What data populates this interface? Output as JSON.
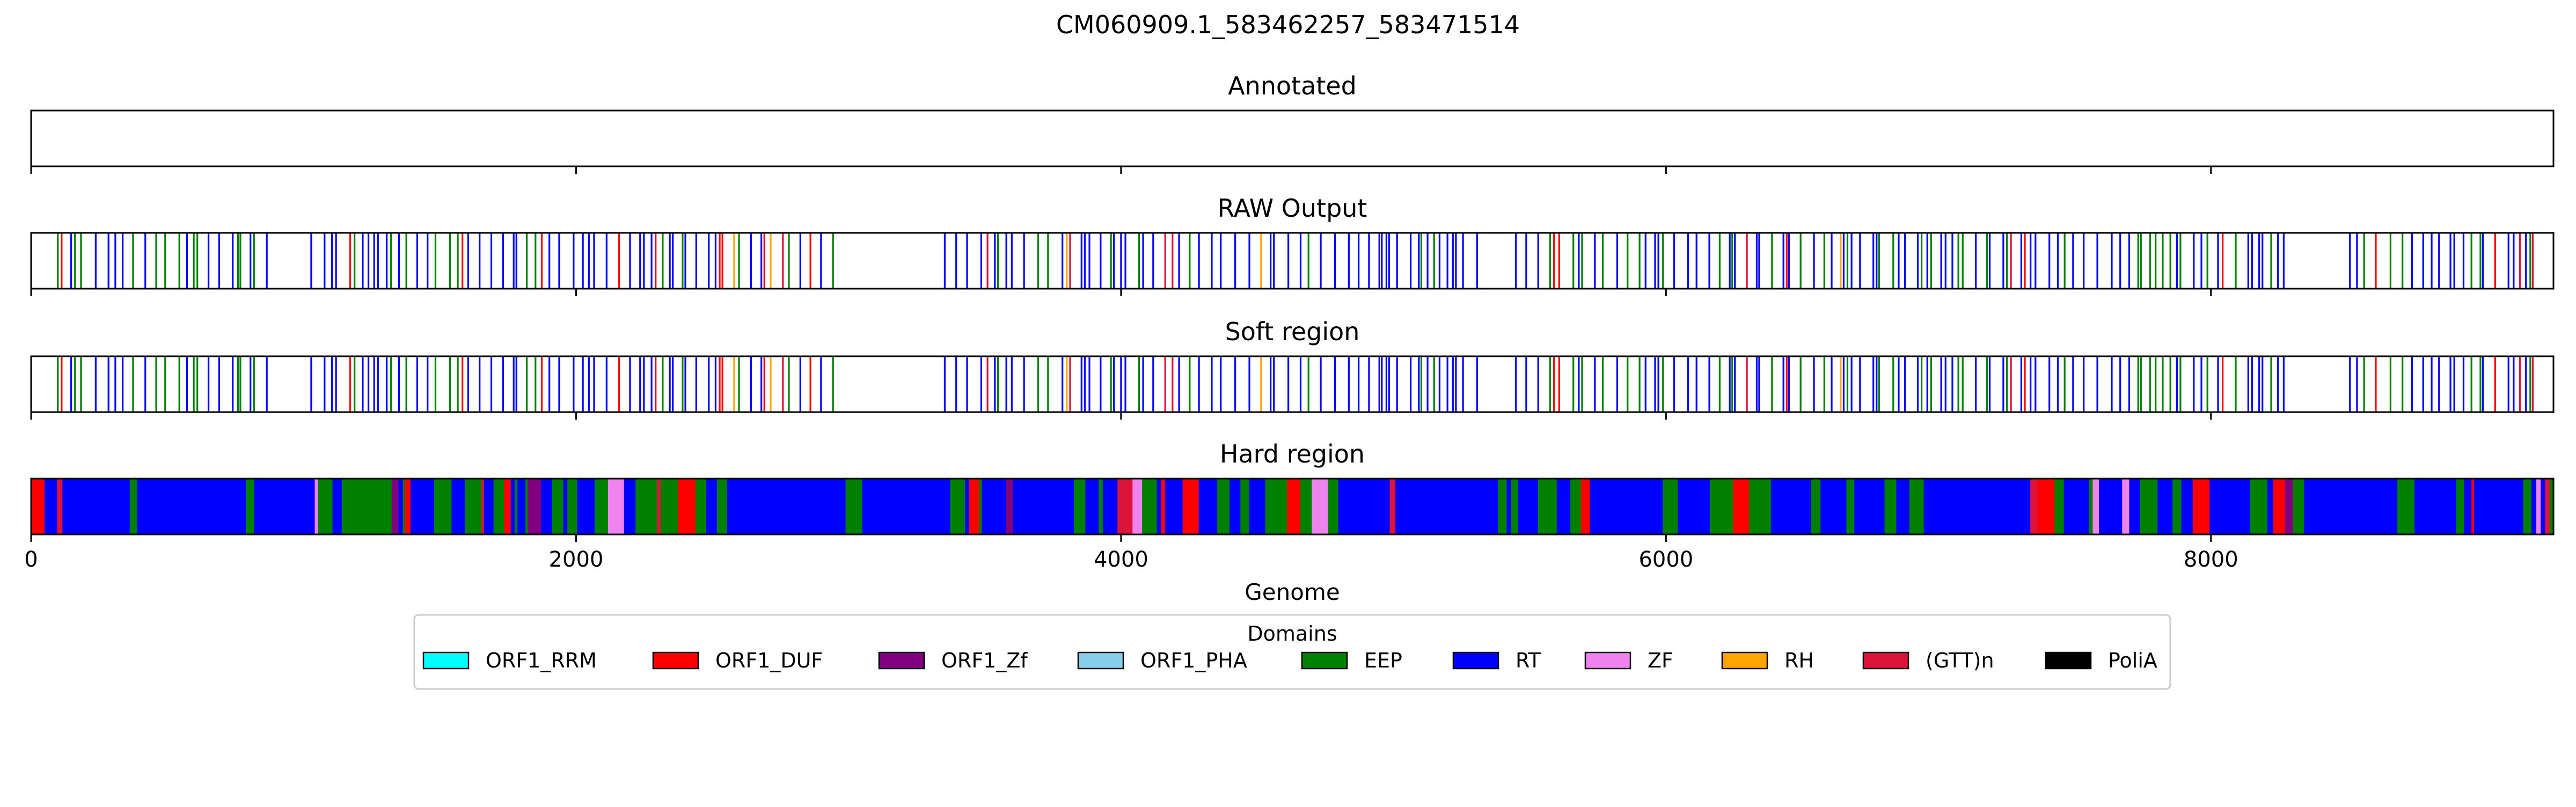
{
  "figure_title": "CM060909.1_583462257_583471514",
  "colors": {
    "ORF1_RRM": "#00ffff",
    "ORF1_DUF": "#ff0000",
    "ORF1_Zf": "#800080",
    "ORF1_PHA": "#87ceeb",
    "EEP": "#008000",
    "RT": "#0000ff",
    "ZF": "#ee82ee",
    "RH": "#ffa500",
    "(GTT)n": "#dc143c",
    "PoliA": "#000000"
  },
  "chart_data": {
    "type": "genome-track",
    "xlim": [
      0,
      9257
    ],
    "xlabel": "Genome",
    "xticks": [
      0,
      2000,
      4000,
      6000,
      8000
    ],
    "xtick_labels": [
      "0",
      "2000",
      "4000",
      "6000",
      "8000"
    ],
    "legend": {
      "title": "Domains",
      "placement": "below",
      "entries": [
        "ORF1_RRM",
        "ORF1_DUF",
        "ORF1_Zf",
        "ORF1_PHA",
        "EEP",
        "RT",
        "ZF",
        "RH",
        "(GTT)n",
        "PoliA"
      ]
    },
    "tracks": [
      {
        "id": "annotated",
        "title": "Annotated",
        "style": "lines",
        "segments": []
      },
      {
        "id": "raw",
        "title": "RAW Output",
        "style": "lines",
        "segments": []
      },
      {
        "id": "soft",
        "title": "Soft region",
        "style": "lines",
        "segments": []
      },
      {
        "id": "hard",
        "title": "Hard region",
        "style": "filled",
        "segments": []
      }
    ]
  }
}
